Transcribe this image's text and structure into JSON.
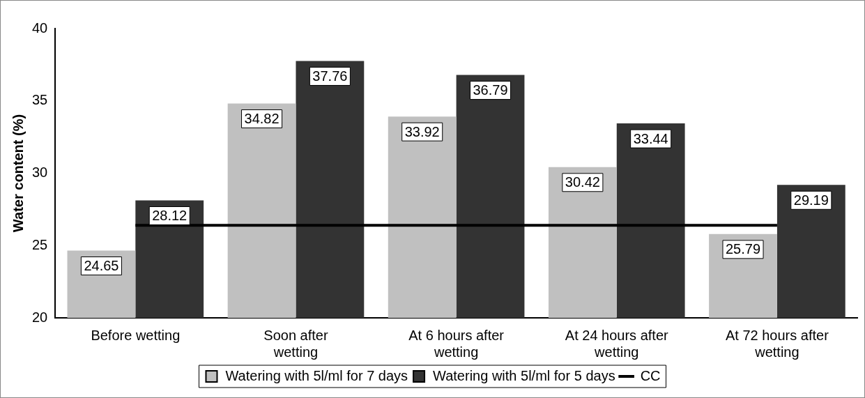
{
  "chart_data": {
    "type": "bar",
    "ylabel": "Water content (%)",
    "categories": [
      "Before wetting",
      "Soon after wetting",
      "At 6 hours after wetting",
      "At 24 hours after wetting",
      "At 72 hours after wetting"
    ],
    "series": [
      {
        "name": "Watering with 5l/ml for 7 days",
        "color": "#c0c0c0",
        "values": [
          24.65,
          34.82,
          33.92,
          30.42,
          25.79
        ],
        "value_labels": [
          "24.65",
          "34.82",
          "33.92",
          "30.42",
          "25.79"
        ]
      },
      {
        "name": "Watering with 5l/ml for 5 days",
        "color": "#333333",
        "values": [
          28.12,
          37.76,
          36.79,
          33.44,
          29.19
        ],
        "value_labels": [
          "28.12",
          "37.76",
          "36.79",
          "33.44",
          "29.19"
        ]
      },
      {
        "name": "CC",
        "type": "line",
        "color": "#000000",
        "values": [
          26.4,
          26.4,
          26.4,
          26.4,
          26.4
        ]
      }
    ],
    "ylim": [
      20,
      40
    ],
    "yticks": [
      20,
      25,
      30,
      35,
      40
    ],
    "grid": false,
    "legend": "bottom",
    "marker": "none"
  }
}
